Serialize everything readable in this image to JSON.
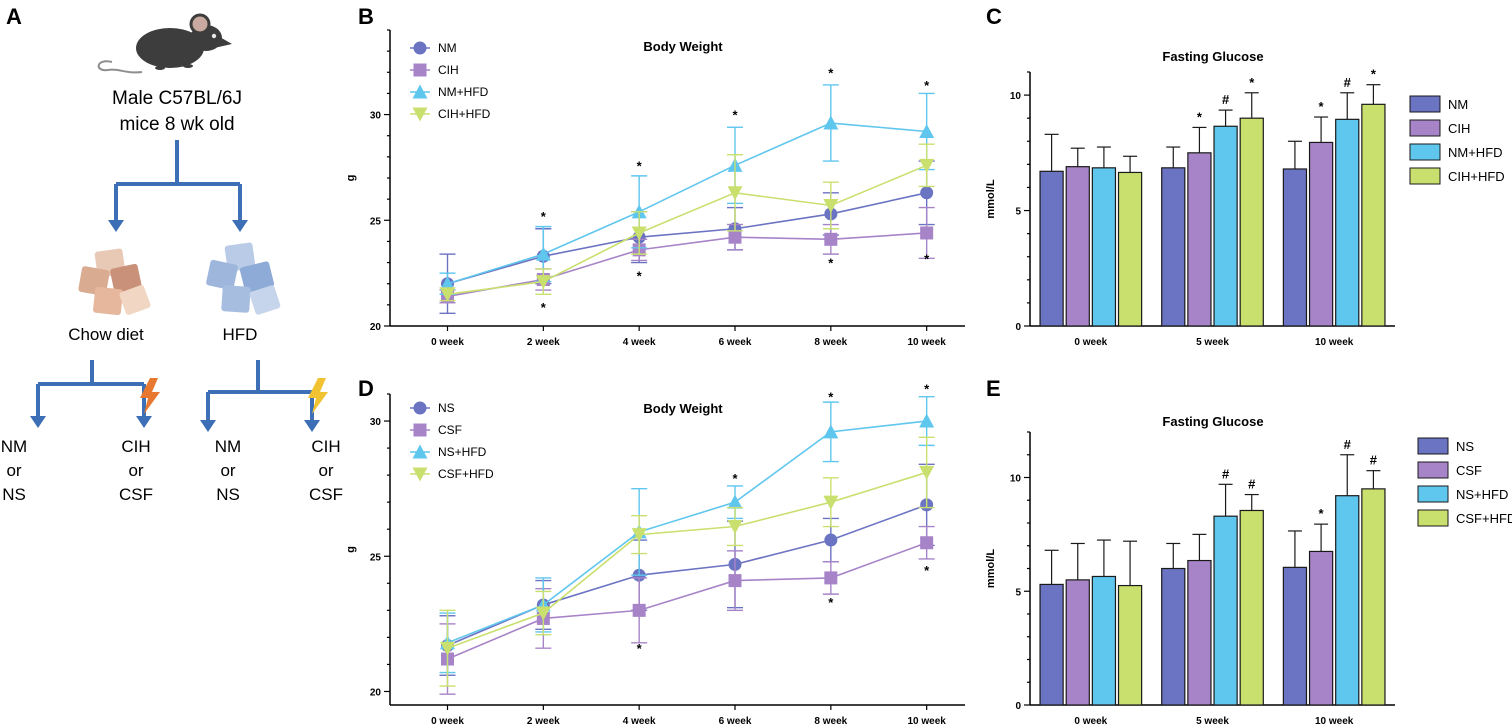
{
  "colors": {
    "NM": "#6b73c3",
    "CIH": "#a784c8",
    "NMHFD": "#5fc6ee",
    "CIHHFD": "#c9e06e",
    "arrow": "#3c6fb5"
  },
  "panel_labels": [
    "A",
    "B",
    "C",
    "D",
    "E"
  ],
  "diagram": {
    "title_line1": "Male C57BL/6J",
    "title_line2": "mice 8 wk old",
    "diet_left": "Chow diet",
    "diet_right": "HFD",
    "leaf1": [
      "NM",
      "or",
      "NS"
    ],
    "leaf2": [
      "CIH",
      "or",
      "CSF"
    ],
    "leaf3": [
      "NM",
      "or",
      "NS"
    ],
    "leaf4": [
      "CIH",
      "or",
      "CSF"
    ],
    "icons": [
      "mouse-icon",
      "chow-cubes-icon",
      "hfd-cubes-icon",
      "lightning-icon"
    ]
  },
  "chart_data": [
    {
      "id": "B",
      "type": "line",
      "title": "Body Weight",
      "ylabel": "g",
      "xlabel": "",
      "ylim": [
        20,
        34
      ],
      "yticks": [
        20,
        25,
        30
      ],
      "categories": [
        "0 week",
        "2 week",
        "4 week",
        "6 week",
        "8 week",
        "10 week"
      ],
      "legend_position": "top-left",
      "series": [
        {
          "name": "NM",
          "color": "#6b73c3",
          "marker": "circle",
          "values": [
            22.0,
            23.3,
            24.2,
            24.6,
            25.3,
            26.3
          ],
          "err": [
            1.4,
            1.3,
            1.2,
            1.0,
            1.0,
            1.5
          ]
        },
        {
          "name": "CIH",
          "color": "#a784c8",
          "marker": "square",
          "values": [
            21.4,
            22.2,
            23.6,
            24.2,
            24.1,
            24.4
          ],
          "err": [
            0.3,
            0.5,
            0.5,
            0.6,
            0.7,
            1.2
          ]
        },
        {
          "name": "NM+HFD",
          "color": "#5fc6ee",
          "marker": "triangle",
          "values": [
            22.0,
            23.4,
            25.4,
            27.6,
            29.6,
            29.2
          ],
          "err": [
            0.5,
            1.3,
            1.7,
            1.8,
            1.8,
            1.8
          ]
        },
        {
          "name": "CIH+HFD",
          "color": "#c9e06e",
          "marker": "triangle-down",
          "values": [
            21.5,
            22.1,
            24.4,
            26.3,
            25.7,
            27.6
          ],
          "err": [
            0.3,
            0.6,
            1.0,
            1.8,
            1.1,
            1.0
          ]
        }
      ],
      "significance": [
        {
          "x": "2 week",
          "y": 25.2,
          "label": "*"
        },
        {
          "x": "2 week",
          "y": 20.9,
          "label": "*"
        },
        {
          "x": "4 week",
          "y": 27.6,
          "label": "*"
        },
        {
          "x": "4 week",
          "y": 22.4,
          "label": "*"
        },
        {
          "x": "6 week",
          "y": 30.0,
          "label": "*"
        },
        {
          "x": "8 week",
          "y": 32.0,
          "label": "*"
        },
        {
          "x": "8 week",
          "y": 23.0,
          "label": "*"
        },
        {
          "x": "10 week",
          "y": 31.4,
          "label": "*"
        },
        {
          "x": "10 week",
          "y": 23.2,
          "label": "*"
        }
      ]
    },
    {
      "id": "C",
      "type": "bar",
      "title": "Fasting Glucose",
      "ylabel": "mmol/L",
      "xlabel": "",
      "ylim": [
        0,
        11
      ],
      "yticks": [
        0,
        5,
        10
      ],
      "categories": [
        "0 week",
        "5 week",
        "10 week"
      ],
      "legend_position": "right",
      "series": [
        {
          "name": "NM",
          "color": "#6b73c3",
          "values": [
            6.7,
            6.85,
            6.8
          ],
          "err": [
            1.6,
            0.9,
            1.2
          ]
        },
        {
          "name": "CIH",
          "color": "#a784c8",
          "values": [
            6.9,
            7.5,
            7.95
          ],
          "err": [
            0.8,
            1.1,
            1.1
          ]
        },
        {
          "name": "NM+HFD",
          "color": "#5fc6ee",
          "values": [
            6.85,
            8.65,
            8.95
          ],
          "err": [
            0.9,
            0.7,
            1.15
          ]
        },
        {
          "name": "CIH+HFD",
          "color": "#c9e06e",
          "values": [
            6.65,
            9.0,
            9.6
          ],
          "err": [
            0.7,
            1.1,
            0.85
          ]
        }
      ],
      "significance": [
        {
          "category": "5 week",
          "series": "CIH",
          "label": "*"
        },
        {
          "category": "5 week",
          "series": "NM+HFD",
          "label": "#"
        },
        {
          "category": "5 week",
          "series": "CIH+HFD",
          "label": "*"
        },
        {
          "category": "10 week",
          "series": "CIH",
          "label": "*"
        },
        {
          "category": "10 week",
          "series": "NM+HFD",
          "label": "#"
        },
        {
          "category": "10 week",
          "series": "CIH+HFD",
          "label": "*"
        }
      ]
    },
    {
      "id": "D",
      "type": "line",
      "title": "Body Weight",
      "ylabel": "g",
      "xlabel": "",
      "ylim": [
        19.5,
        31
      ],
      "yticks": [
        20,
        25,
        30
      ],
      "categories": [
        "0 week",
        "2 week",
        "4 week",
        "6 week",
        "8 week",
        "10 week"
      ],
      "legend_position": "top-left",
      "series": [
        {
          "name": "NS",
          "color": "#6b73c3",
          "marker": "circle",
          "values": [
            21.7,
            23.2,
            24.3,
            24.7,
            25.6,
            26.9
          ],
          "err": [
            1.1,
            0.9,
            1.3,
            1.6,
            0.8,
            1.5
          ]
        },
        {
          "name": "CSF",
          "color": "#a784c8",
          "marker": "square",
          "values": [
            21.2,
            22.7,
            23.0,
            24.1,
            24.2,
            25.5
          ],
          "err": [
            1.3,
            1.1,
            1.2,
            1.1,
            0.6,
            0.6
          ]
        },
        {
          "name": "NS+HFD",
          "color": "#5fc6ee",
          "marker": "triangle",
          "values": [
            21.8,
            23.2,
            25.9,
            27.0,
            29.6,
            30.0
          ],
          "err": [
            1.1,
            1.0,
            1.6,
            0.6,
            1.1,
            0.9
          ]
        },
        {
          "name": "CSF+HFD",
          "color": "#c9e06e",
          "marker": "triangle-down",
          "values": [
            21.6,
            22.9,
            25.8,
            26.1,
            27.0,
            28.1
          ],
          "err": [
            1.4,
            0.8,
            0.7,
            0.7,
            0.9,
            1.3
          ]
        }
      ],
      "significance": [
        {
          "x": "4 week",
          "y": 21.6,
          "label": "*"
        },
        {
          "x": "6 week",
          "y": 27.9,
          "label": "*"
        },
        {
          "x": "8 week",
          "y": 30.9,
          "label": "*"
        },
        {
          "x": "8 week",
          "y": 23.3,
          "label": "*"
        },
        {
          "x": "10 week",
          "y": 31.2,
          "label": "*"
        },
        {
          "x": "10 week",
          "y": 24.5,
          "label": "*"
        }
      ]
    },
    {
      "id": "E",
      "type": "bar",
      "title": "Fasting Glucose",
      "ylabel": "mmol/L",
      "xlabel": "",
      "ylim": [
        0,
        12
      ],
      "yticks": [
        0,
        5,
        10
      ],
      "categories": [
        "0 week",
        "5 week",
        "10 week"
      ],
      "legend_position": "right",
      "series": [
        {
          "name": "NS",
          "color": "#6b73c3",
          "values": [
            5.3,
            6.0,
            6.05
          ],
          "err": [
            1.5,
            1.1,
            1.6
          ]
        },
        {
          "name": "CSF",
          "color": "#a784c8",
          "values": [
            5.5,
            6.35,
            6.75
          ],
          "err": [
            1.6,
            1.15,
            1.2
          ]
        },
        {
          "name": "NS+HFD",
          "color": "#5fc6ee",
          "values": [
            5.65,
            8.3,
            9.2
          ],
          "err": [
            1.6,
            1.4,
            1.8
          ]
        },
        {
          "name": "CSF+HFD",
          "color": "#c9e06e",
          "values": [
            5.25,
            8.55,
            9.5
          ],
          "err": [
            1.95,
            0.7,
            0.8
          ]
        }
      ],
      "significance": [
        {
          "category": "5 week",
          "series": "NS+HFD",
          "label": "#"
        },
        {
          "category": "5 week",
          "series": "CSF+HFD",
          "label": "#"
        },
        {
          "category": "10 week",
          "series": "CSF",
          "label": "*"
        },
        {
          "category": "10 week",
          "series": "NS+HFD",
          "label": "#"
        },
        {
          "category": "10 week",
          "series": "CSF+HFD",
          "label": "#"
        }
      ]
    }
  ]
}
